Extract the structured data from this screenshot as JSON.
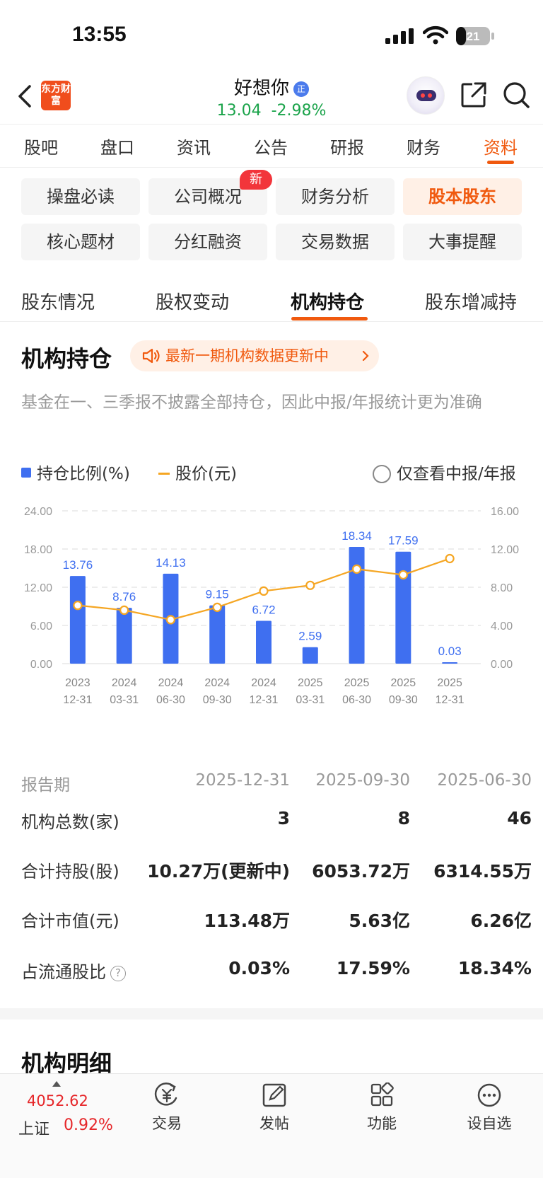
{
  "status_bar": {
    "time": "13:55",
    "battery": "21"
  },
  "header": {
    "logo_text": "东方财富",
    "stock_name": "好想你",
    "stock_tag": "正",
    "price": "13.04",
    "change": "-2.98%"
  },
  "tabs": [
    "股吧",
    "盘口",
    "资讯",
    "公告",
    "研报",
    "财务",
    "资料"
  ],
  "active_tab": "资料",
  "chips": [
    "操盘必读",
    "公司概况",
    "财务分析",
    "股本股东",
    "核心题材",
    "分红融资",
    "交易数据",
    "大事提醒"
  ],
  "active_chip": "股本股东",
  "new_badge": "新",
  "subtabs": [
    "股东情况",
    "股权变动",
    "机构持仓",
    "股东增减持"
  ],
  "active_subtab": "机构持仓",
  "section": {
    "title": "机构持仓",
    "notice": "最新一期机构数据更新中",
    "note": "基金在一、三季报不披露全部持仓，因此中报/年报统计更为准确"
  },
  "legend": {
    "bars": "持仓比例(%)",
    "line": "股价(元)",
    "toggle": "仅查看中报/年报"
  },
  "chart_data": {
    "type": "bar",
    "categories": [
      "2023\n12-31",
      "2024\n03-31",
      "2024\n06-30",
      "2024\n09-30",
      "2024\n12-31",
      "2025\n03-31",
      "2025\n06-30",
      "2025\n09-30",
      "2025\n12-31"
    ],
    "series": [
      {
        "name": "持仓比例(%)",
        "type": "bar",
        "axis": "left",
        "color": "#3f6ff0",
        "values": [
          13.76,
          8.76,
          14.13,
          9.15,
          6.72,
          2.59,
          18.34,
          17.59,
          0.03
        ]
      },
      {
        "name": "股价(元)",
        "type": "line",
        "axis": "right",
        "color": "#f5a623",
        "values": [
          6.1,
          5.6,
          4.6,
          5.9,
          7.6,
          8.2,
          9.9,
          9.3,
          11.0
        ]
      }
    ],
    "y_left": {
      "range": [
        0,
        24
      ],
      "ticks": [
        "0.00",
        "6.00",
        "12.00",
        "18.00",
        "24.00"
      ]
    },
    "y_right": {
      "range": [
        0,
        16
      ],
      "ticks": [
        "0.00",
        "4.00",
        "8.00",
        "12.00",
        "16.00"
      ]
    },
    "grid": true,
    "legend": "top-left"
  },
  "table": {
    "header_label": "报告期",
    "periods": [
      "2025-12-31",
      "2025-09-30",
      "2025-06-30"
    ],
    "rows": [
      {
        "label": "机构总数(家)",
        "values": [
          "3",
          "8",
          "46"
        ]
      },
      {
        "label": "合计持股(股)",
        "values": [
          "10.27万(更新中)",
          "6053.72万",
          "6314.55万"
        ]
      },
      {
        "label": "合计市值(元)",
        "values": [
          "113.48万",
          "5.63亿",
          "6.26亿"
        ]
      },
      {
        "label": "占流通股比",
        "values": [
          "0.03%",
          "17.59%",
          "18.34%"
        ]
      }
    ]
  },
  "section2": {
    "title": "机构明细"
  },
  "bottom_bar": {
    "index_value": "4052.62",
    "index_name": "上证",
    "index_change": "0.92%",
    "items": [
      "交易",
      "发帖",
      "功能",
      "设自选"
    ]
  }
}
